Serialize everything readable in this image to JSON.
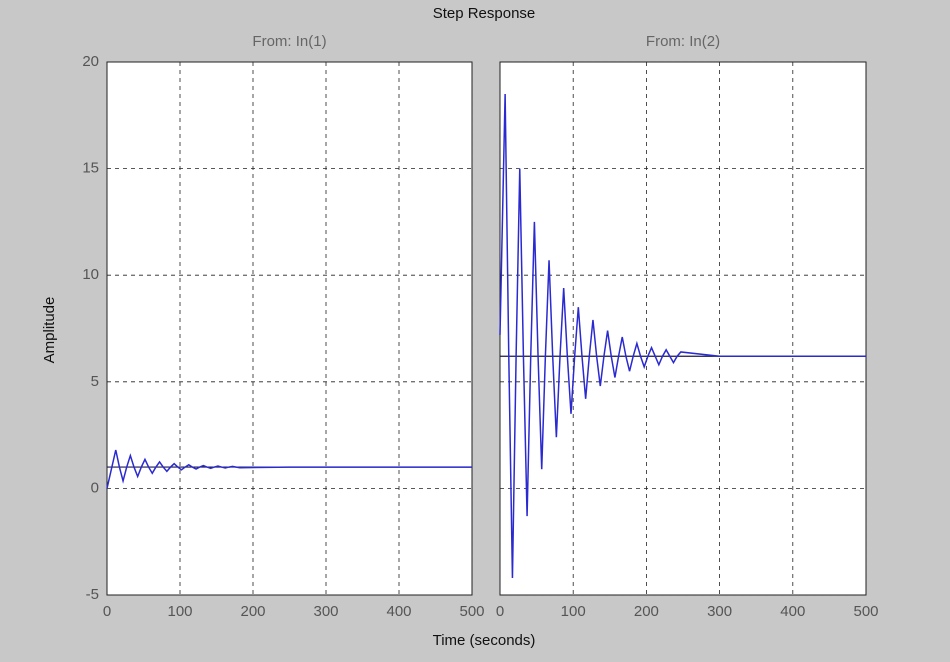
{
  "title": "Step Response",
  "xlabel": "Time (seconds)",
  "ylabel": "Amplitude",
  "chart_data": [
    {
      "type": "line",
      "subtitle": "From: In(1)",
      "xlim": [
        0,
        500
      ],
      "ylim": [
        -5,
        20
      ],
      "xticks": [
        0,
        100,
        200,
        300,
        400,
        500
      ],
      "yticks": [
        -5,
        0,
        5,
        10,
        15,
        20
      ],
      "ytick_labels": true,
      "grid": true,
      "reference_line": 1,
      "reference_color": "#1a1a4a",
      "series": [
        {
          "name": "In(1)",
          "color": "#2a2ad0",
          "x": [
            0,
            12,
            17,
            22,
            27,
            32,
            37,
            42,
            47,
            52,
            57,
            62,
            67,
            72,
            77,
            82,
            87,
            92,
            97,
            102,
            107,
            112,
            117,
            122,
            127,
            132,
            137,
            142,
            147,
            152,
            157,
            162,
            167,
            172,
            177,
            182,
            250,
            300,
            400,
            500
          ],
          "values": [
            0,
            1.8,
            1,
            0.35,
            1,
            1.54,
            1,
            0.56,
            1,
            1.36,
            1,
            0.71,
            1,
            1.24,
            1,
            0.8,
            1,
            1.16,
            1,
            0.87,
            1,
            1.11,
            1,
            0.91,
            1,
            1.07,
            1,
            0.94,
            1,
            1.05,
            1,
            0.96,
            1,
            1.03,
            1,
            0.97,
            1,
            1,
            1,
            1
          ]
        }
      ]
    },
    {
      "type": "line",
      "subtitle": "From: In(2)",
      "xlim": [
        0,
        500
      ],
      "ylim": [
        -5,
        20
      ],
      "xticks": [
        0,
        100,
        200,
        300,
        400,
        500
      ],
      "yticks": [
        -5,
        0,
        5,
        10,
        15,
        20
      ],
      "ytick_labels": false,
      "grid": true,
      "reference_line": 6.2,
      "reference_color": "#1a1a4a",
      "series": [
        {
          "name": "In(2)",
          "color": "#2a2ad0",
          "x": [
            0,
            7,
            12,
            17,
            22,
            27,
            32,
            37,
            42,
            47,
            52,
            57,
            62,
            67,
            72,
            77,
            82,
            87,
            92,
            97,
            102,
            107,
            112,
            117,
            122,
            127,
            132,
            137,
            142,
            147,
            152,
            157,
            162,
            167,
            172,
            177,
            182,
            187,
            192,
            197,
            202,
            207,
            212,
            217,
            222,
            227,
            232,
            237,
            242,
            247,
            300,
            350,
            400,
            450,
            500
          ],
          "values": [
            7.2,
            18.5,
            6.2,
            -4.2,
            6.2,
            15,
            6.2,
            -1.3,
            6.2,
            12.5,
            6.2,
            0.9,
            6.2,
            10.7,
            6.2,
            2.4,
            6.2,
            9.4,
            6.2,
            3.5,
            6.2,
            8.5,
            6.2,
            4.2,
            6.2,
            7.9,
            6.2,
            4.8,
            6.2,
            7.4,
            6.2,
            5.2,
            6.2,
            7.1,
            6.2,
            5.5,
            6.2,
            6.8,
            6.2,
            5.7,
            6.2,
            6.6,
            6.2,
            5.8,
            6.2,
            6.5,
            6.2,
            5.9,
            6.2,
            6.4,
            6.2,
            6.2,
            6.2,
            6.2,
            6.2
          ]
        }
      ]
    }
  ]
}
